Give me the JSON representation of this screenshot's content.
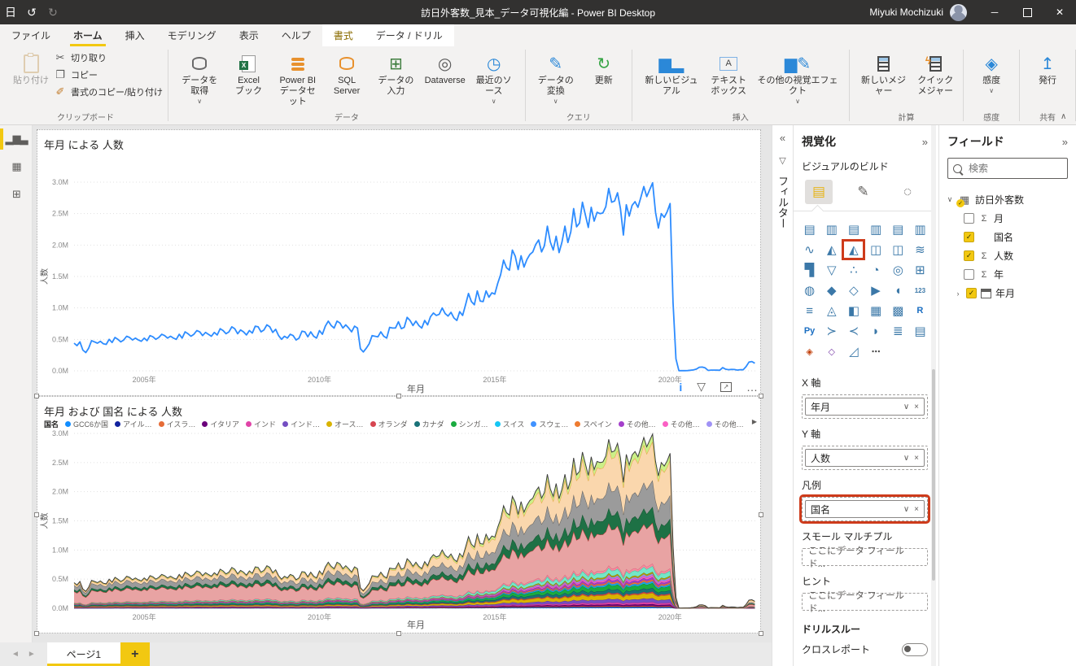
{
  "colors": {
    "accent": "#F2C811",
    "annotation_red": "#CE3B1B",
    "line_blue": "#2D8CFF",
    "titlebar_bg": "#323130"
  },
  "titlebar": {
    "title": "訪日外客数_見本_データ可視化編 - Power BI Desktop",
    "user_name": "Miyuki Mochizuki",
    "icons": [
      "save-icon",
      "undo-icon",
      "redo-icon"
    ],
    "window_buttons": [
      "minimize",
      "restore",
      "close"
    ]
  },
  "menu_tabs": [
    {
      "label": "ファイル",
      "name": "file"
    },
    {
      "label": "ホーム",
      "name": "home",
      "selected": true
    },
    {
      "label": "挿入",
      "name": "insert"
    },
    {
      "label": "モデリング",
      "name": "modeling"
    },
    {
      "label": "表示",
      "name": "view"
    },
    {
      "label": "ヘルプ",
      "name": "help"
    },
    {
      "label": "書式",
      "name": "format",
      "contextual": true,
      "gold": true
    },
    {
      "label": "データ / ドリル",
      "name": "data-drill",
      "contextual": true
    }
  ],
  "ribbon": {
    "collapse_icon": "∧",
    "groups": [
      {
        "label": "クリップボード",
        "layout": "clipboard",
        "buttons": [
          {
            "label": "貼り付け",
            "name": "paste-button",
            "icon": "paste-icon",
            "disabled": true,
            "big": true
          },
          {
            "label": "切り取り",
            "name": "cut-button",
            "icon": "cut-icon"
          },
          {
            "label": "コピー",
            "name": "copy-button",
            "icon": "copy-icon"
          },
          {
            "label": "書式のコピー/貼り付け",
            "name": "format-painter-button",
            "icon": "format-painter-icon"
          }
        ]
      },
      {
        "label": "データ",
        "buttons": [
          {
            "label": "データを取得",
            "name": "get-data-button",
            "icon": "get-data-icon",
            "dropdown": true
          },
          {
            "label": "Excel\nブック",
            "name": "excel-workbook-button",
            "icon": "excel-icon"
          },
          {
            "label": "Power BI\nデータセット",
            "name": "power-bi-datasets-button",
            "icon": "pbi-dataset-icon"
          },
          {
            "label": "SQL\nServer",
            "name": "sql-server-button",
            "icon": "sql-server-icon"
          },
          {
            "label": "データの入力",
            "name": "enter-data-button",
            "icon": "enter-data-icon"
          },
          {
            "label": "Dataverse",
            "name": "dataverse-button",
            "icon": "dataverse-icon"
          },
          {
            "label": "最近のソース",
            "name": "recent-sources-button",
            "icon": "recent-sources-icon",
            "dropdown": true
          }
        ]
      },
      {
        "label": "クエリ",
        "buttons": [
          {
            "label": "データの変換",
            "name": "transform-data-button",
            "icon": "transform-data-icon",
            "dropdown": true
          },
          {
            "label": "更新",
            "name": "refresh-button",
            "icon": "refresh-icon"
          }
        ]
      },
      {
        "label": "挿入",
        "buttons": [
          {
            "label": "新しいビジュアル",
            "name": "new-visual-button",
            "icon": "new-visual-icon"
          },
          {
            "label": "テキスト\nボックス",
            "name": "text-box-button",
            "icon": "text-box-icon"
          },
          {
            "label": "その他の視覚エフェクト",
            "name": "more-visuals-button",
            "icon": "more-visuals-icon",
            "dropdown": true
          }
        ]
      },
      {
        "label": "計算",
        "buttons": [
          {
            "label": "新しいメジャー",
            "name": "new-measure-button",
            "icon": "new-measure-icon"
          },
          {
            "label": "クイック\nメジャー",
            "name": "quick-measure-button",
            "icon": "quick-measure-icon"
          }
        ]
      },
      {
        "label": "感度",
        "buttons": [
          {
            "label": "感度",
            "name": "sensitivity-button",
            "icon": "sensitivity-icon",
            "dropdown": true
          }
        ]
      },
      {
        "label": "共有",
        "buttons": [
          {
            "label": "発行",
            "name": "publish-button",
            "icon": "publish-icon"
          }
        ]
      }
    ]
  },
  "view_rail": [
    {
      "name": "report-view",
      "icon": "report-view-icon",
      "selected": true
    },
    {
      "name": "data-view",
      "icon": "data-view-icon"
    },
    {
      "name": "model-view",
      "icon": "model-view-icon"
    }
  ],
  "filter_pane": {
    "title": "フィルター",
    "collapse_icon": "«",
    "funnel_icon": "▽"
  },
  "chart_data": [
    {
      "type": "line",
      "title": "年月 による 人数",
      "xlabel": "年月",
      "ylabel": "人数",
      "line_color": "#2D8CFF",
      "x_start_year": 2003,
      "x_span_years": 19.5,
      "x_ticks": [
        {
          "label": "2005年",
          "year": 2005
        },
        {
          "label": "2010年",
          "year": 2010
        },
        {
          "label": "2015年",
          "year": 2015
        },
        {
          "label": "2020年",
          "year": 2020
        }
      ],
      "y_ticks": [
        "0.0M",
        "0.5M",
        "1.0M",
        "1.5M",
        "2.0M",
        "2.5M",
        "3.0M"
      ],
      "ylim": [
        0,
        3000000
      ],
      "grid": true,
      "values_unit": "millions_per_month",
      "values_millions": [
        0.44,
        0.4,
        0.46,
        0.33,
        0.29,
        0.36,
        0.48,
        0.46,
        0.44,
        0.47,
        0.43,
        0.42,
        0.5,
        0.45,
        0.53,
        0.5,
        0.46,
        0.49,
        0.55,
        0.53,
        0.49,
        0.52,
        0.49,
        0.47,
        0.52,
        0.48,
        0.56,
        0.54,
        0.5,
        0.53,
        0.58,
        0.56,
        0.52,
        0.55,
        0.52,
        0.5,
        0.58,
        0.52,
        0.62,
        0.59,
        0.55,
        0.58,
        0.64,
        0.62,
        0.56,
        0.61,
        0.58,
        0.55,
        0.61,
        0.57,
        0.67,
        0.64,
        0.59,
        0.62,
        0.7,
        0.67,
        0.59,
        0.65,
        0.62,
        0.57,
        0.64,
        0.6,
        0.71,
        0.7,
        0.62,
        0.65,
        0.73,
        0.7,
        0.61,
        0.66,
        0.56,
        0.5,
        0.55,
        0.52,
        0.58,
        0.56,
        0.49,
        0.52,
        0.63,
        0.62,
        0.54,
        0.62,
        0.55,
        0.52,
        0.64,
        0.58,
        0.71,
        0.79,
        0.72,
        0.68,
        0.79,
        0.76,
        0.68,
        0.73,
        0.68,
        0.62,
        0.71,
        0.68,
        0.35,
        0.3,
        0.36,
        0.43,
        0.56,
        0.55,
        0.54,
        0.62,
        0.55,
        0.52,
        0.69,
        0.68,
        0.68,
        0.78,
        0.67,
        0.69,
        0.85,
        0.8,
        0.72,
        0.79,
        0.72,
        0.68,
        0.8,
        0.73,
        0.86,
        0.92,
        0.88,
        0.9,
        1.0,
        0.91,
        0.87,
        0.93,
        0.84,
        0.8,
        0.94,
        0.88,
        1.05,
        1.23,
        1.1,
        1.05,
        1.27,
        1.11,
        1.1,
        1.27,
        1.17,
        1.24,
        1.22,
        1.39,
        1.53,
        1.76,
        1.64,
        1.6,
        1.92,
        1.82,
        1.61,
        1.83,
        1.65,
        1.77,
        1.85,
        1.89,
        2.01,
        2.08,
        1.89,
        1.99,
        2.3,
        2.05,
        1.92,
        2.14,
        1.88,
        2.05,
        2.3,
        2.04,
        2.21,
        2.58,
        2.29,
        2.35,
        2.68,
        2.48,
        2.28,
        2.6,
        2.38,
        2.52,
        2.5,
        2.51,
        2.61,
        2.9,
        2.68,
        2.7,
        2.83,
        2.58,
        2.16,
        2.64,
        2.46,
        2.63,
        2.69,
        2.6,
        2.76,
        2.93,
        2.77,
        2.88,
        2.99,
        2.52,
        2.27,
        2.5,
        2.44,
        2.53,
        2.66,
        1.09,
        0.19,
        0.003,
        0.002,
        0.003,
        0.004,
        0.009,
        0.014,
        0.027,
        0.057,
        0.059,
        0.046,
        0.007,
        0.012,
        0.011,
        0.01,
        0.009,
        0.051,
        0.026,
        0.018,
        0.022,
        0.021,
        0.012,
        0.018,
        0.017,
        0.066,
        0.139,
        0.147,
        0.12
      ]
    },
    {
      "type": "stacked-area",
      "title": "年月 および 国名 による 人数",
      "legend_title": "国名",
      "legend_nav_icon": "▶",
      "xlabel": "年月",
      "ylabel": "人数",
      "x_ticks": [
        {
          "label": "2005年",
          "year": 2005
        },
        {
          "label": "2010年",
          "year": 2010
        },
        {
          "label": "2015年",
          "year": 2015
        },
        {
          "label": "2020年",
          "year": 2020
        }
      ],
      "y_ticks": [
        "0.0M",
        "0.5M",
        "1.0M",
        "1.5M",
        "2.0M",
        "2.5M",
        "3.0M"
      ],
      "ylim": [
        0,
        3000000
      ],
      "totals_note": "stack totals equal line-chart values_millions",
      "series": [
        {
          "label": "GCC6か国",
          "in_legend": true,
          "color": "#118DFF",
          "stroke": "#0B6ACC",
          "share_start": 0.006,
          "share_end": 0.005
        },
        {
          "label": "アイル…",
          "in_legend": true,
          "color": "#12239E",
          "stroke": "#0D1A75",
          "share_start": 0.004,
          "share_end": 0.003
        },
        {
          "label": "イスラ…",
          "in_legend": true,
          "color": "#E66C37",
          "stroke": "#B5502A",
          "share_start": 0.005,
          "share_end": 0.006
        },
        {
          "label": "イタリア",
          "in_legend": true,
          "color": "#6B007B",
          "stroke": "#4D0058",
          "share_start": 0.01,
          "share_end": 0.01
        },
        {
          "label": "インド",
          "in_legend": true,
          "color": "#E044A7",
          "stroke": "#B03384",
          "share_start": 0.008,
          "share_end": 0.012
        },
        {
          "label": "インド…",
          "in_legend": true,
          "color": "#744EC2",
          "stroke": "#5A3A9E",
          "share_start": 0.01,
          "share_end": 0.025
        },
        {
          "label": "オース…",
          "in_legend": true,
          "color": "#D9B300",
          "stroke": "#A98B00",
          "share_start": 0.03,
          "share_end": 0.03
        },
        {
          "label": "オランダ",
          "in_legend": true,
          "color": "#D64550",
          "stroke": "#A33540",
          "share_start": 0.008,
          "share_end": 0.008
        },
        {
          "label": "カナダ",
          "in_legend": true,
          "color": "#197278",
          "stroke": "#115257",
          "share_start": 0.025,
          "share_end": 0.02
        },
        {
          "label": "シンガ…",
          "in_legend": true,
          "color": "#1AAB40",
          "stroke": "#148232",
          "share_start": 0.02,
          "share_end": 0.03
        },
        {
          "label": "スイス",
          "in_legend": true,
          "color": "#15C6F4",
          "stroke": "#0F9AC2",
          "share_start": 0.008,
          "share_end": 0.006
        },
        {
          "label": "スウェ…",
          "in_legend": true,
          "color": "#4092FF",
          "stroke": "#2F6FC4",
          "share_start": 0.006,
          "share_end": 0.005
        },
        {
          "label": "スペイン",
          "in_legend": true,
          "color": "#EE7B30",
          "stroke": "#BB5F23",
          "share_start": 0.008,
          "share_end": 0.01
        },
        {
          "label": "その他…",
          "in_legend": true,
          "color": "#A43FCB",
          "stroke": "#7E2F9E",
          "share_start": 0.012,
          "share_end": 0.012
        },
        {
          "label": "その他…",
          "in_legend": true,
          "color": "#FB60C4",
          "stroke": "#C44697",
          "share_start": 0.01,
          "share_end": 0.012
        },
        {
          "label": "その他…",
          "in_legend": true,
          "color": "#A092F5",
          "stroke": "#7A72C9",
          "share_start": 0.008,
          "share_end": 0.01
        },
        {
          "label": "その他…",
          "in_legend": true,
          "color": "#B5A000",
          "stroke": "#8A7A00",
          "share_start": 0.01,
          "share_end": 0.01
        },
        {
          "label": "",
          "in_legend": false,
          "color": "#74E6C7",
          "stroke": "#3FBF9F",
          "share_start": 0.02,
          "share_end": 0.035
        },
        {
          "label": "",
          "in_legend": false,
          "color": "#F98B9F",
          "stroke": "#D9657E",
          "share_start": 0.01,
          "share_end": 0.015
        },
        {
          "label": "",
          "in_legend": false,
          "color": "#E8A3A3",
          "stroke": "#C43A3A",
          "share_start": 0.43,
          "share_end": 0.2
        },
        {
          "label": "",
          "in_legend": false,
          "color": "#1E7145",
          "stroke": "#14532F",
          "share_start": 0.075,
          "share_end": 0.095
        },
        {
          "label": "",
          "in_legend": false,
          "color": "#9B9B9B",
          "stroke": "#5F5F5F",
          "share_start": 0.17,
          "share_end": 0.15
        },
        {
          "label": "",
          "in_legend": false,
          "color": "#FAD7AD",
          "stroke": "#E8A13F",
          "share_start": 0.07,
          "share_end": 0.25
        },
        {
          "label": "",
          "in_legend": false,
          "color": "#CBEF87",
          "stroke": "#3D3D3D",
          "share_start": 0.03,
          "share_end": 0.045
        }
      ]
    }
  ],
  "visual_toolbar": {
    "icons": [
      "info-icon",
      "filter-icon",
      "focus-mode-icon",
      "more-options-icon"
    ],
    "info_glyph": "i",
    "filter_glyph": "▽",
    "focus_glyph": "↗",
    "more_glyph": "…"
  },
  "viz_pane": {
    "title": "視覚化",
    "collapse_icon": "»",
    "build_label": "ビジュアルのビルド",
    "tabs": [
      {
        "name": "build-visual-tab",
        "selected": true
      },
      {
        "name": "format-visual-tab"
      },
      {
        "name": "analytics-tab"
      }
    ],
    "gallery_highlight_index": 8,
    "gallery": [
      "stacked-bar-chart",
      "stacked-column-chart",
      "clustered-bar-chart",
      "clustered-column-chart",
      "100-stacked-bar-chart",
      "100-stacked-column-chart",
      "line-chart",
      "area-chart",
      "stacked-area-chart",
      "line-and-stacked-column-chart",
      "line-and-clustered-column-chart",
      "ribbon-chart",
      "waterfall-chart",
      "funnel-chart",
      "scatter-chart",
      "pie-chart",
      "donut-chart",
      "treemap",
      "map",
      "filled-map",
      "shape-map",
      "azure-map",
      "gauge",
      "card",
      "multi-row-card",
      "kpi",
      "slicer",
      "table",
      "matrix",
      "r-script",
      "python-script",
      "key-influencers",
      "decomposition-tree",
      "q-and-a",
      "smart-narrative",
      "paginated-report",
      "power-apps",
      "power-automate",
      "metrics",
      "more-options"
    ],
    "wells": [
      {
        "label": "X 軸",
        "pill": "年月"
      },
      {
        "label": "Y 軸",
        "pill": "人数"
      },
      {
        "label": "凡例",
        "pill": "国名",
        "highlighted": true
      },
      {
        "label": "スモール マルチプル",
        "placeholder": "ここにデータ フィールド..."
      },
      {
        "label": "ヒント",
        "placeholder": "ここにデータ フィールド..."
      }
    ],
    "drillthrough_label": "ドリルスルー",
    "cross_report_label": "クロスレポート"
  },
  "fields_pane": {
    "title": "フィールド",
    "collapse_icon": "»",
    "search_placeholder": "検索",
    "table": {
      "label": "訪日外客数",
      "expanded": true,
      "fields": [
        {
          "label": "月",
          "aggregate": true,
          "checked": false
        },
        {
          "label": "国名",
          "aggregate": false,
          "checked": true
        },
        {
          "label": "人数",
          "aggregate": true,
          "checked": true
        },
        {
          "label": "年",
          "aggregate": true,
          "checked": false
        },
        {
          "label": "年月",
          "aggregate": false,
          "checked": true,
          "calendar": true,
          "expandable": true
        }
      ]
    }
  },
  "page_bar": {
    "prev_icon": "◄",
    "next_icon": "►",
    "pages": [
      {
        "label": "ページ1",
        "selected": true
      }
    ],
    "add_label": "+"
  }
}
